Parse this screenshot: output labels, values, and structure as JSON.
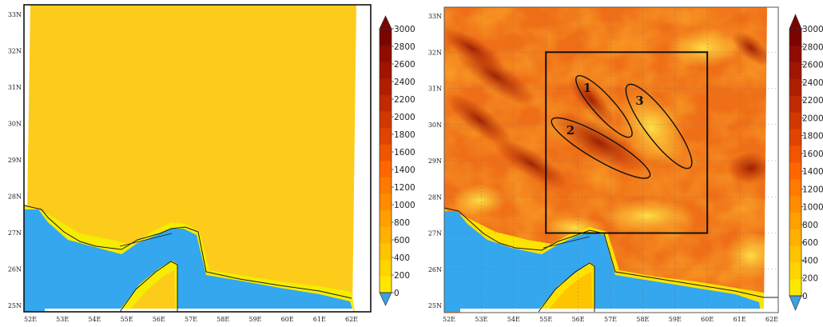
{
  "figure": {
    "panels": [
      {
        "name": "left",
        "kind": "uniform",
        "lat_ticks": [
          "33N",
          "32N",
          "31N",
          "30N",
          "29N",
          "28N",
          "27N",
          "26N",
          "25N"
        ],
        "lon_ticks": [
          "52E",
          "53E",
          "54E",
          "55E",
          "56E",
          "57E",
          "58E",
          "59E",
          "60E",
          "61E",
          "62E"
        ]
      },
      {
        "name": "right",
        "kind": "terrain",
        "lat_ticks": [
          "33N",
          "32N",
          "31N",
          "30N",
          "29N",
          "28N",
          "27N",
          "26N",
          "25N"
        ],
        "lon_ticks": [
          "52E",
          "53E",
          "54E",
          "55E",
          "56E",
          "57E",
          "58E",
          "59E",
          "60E",
          "61E",
          "62E"
        ],
        "box": {
          "lon": [
            55,
            60
          ],
          "lat": [
            27,
            32
          ]
        },
        "regions": [
          {
            "label": "1",
            "center": [
              56.8,
              30.5
            ],
            "rx_deg": 1.25,
            "ry_deg": 0.32,
            "angle": 48
          },
          {
            "label": "2",
            "center": [
              56.7,
              29.35
            ],
            "rx_deg": 1.75,
            "ry_deg": 0.38,
            "angle": 30
          },
          {
            "label": "3",
            "center": [
              58.5,
              29.95
            ],
            "rx_deg": 1.6,
            "ry_deg": 0.42,
            "angle": 53
          }
        ]
      }
    ]
  },
  "colorbar": {
    "ticks_left": [
      "3000",
      "2800",
      "2600",
      "2400",
      "2200",
      "2000",
      "1800",
      "1600",
      "1400",
      "1200",
      "1000",
      "800",
      "600",
      "400",
      "200",
      "0"
    ],
    "ticks_right": [
      "3000",
      "2800",
      "2600",
      "2400",
      "2200",
      "2000",
      "1800",
      "1600",
      "1400",
      "1200",
      "1000",
      "800",
      "600",
      "400",
      "200",
      "0"
    ],
    "colors": [
      "#ffe800",
      "#ffd400",
      "#ffc400",
      "#ffb000",
      "#ffa000",
      "#ff8c00",
      "#ff7a00",
      "#ff6600",
      "#f05500",
      "#e04400",
      "#d03800",
      "#c02a00",
      "#b01e00",
      "#a01400",
      "#900c00",
      "#7a0400"
    ],
    "under_color": "#3ba2e6",
    "over_color": "#7a0400"
  },
  "colors": {
    "water": "#34a7ee",
    "uniform_land": "#fdcc1a",
    "coast_band": "#f5ec00"
  }
}
